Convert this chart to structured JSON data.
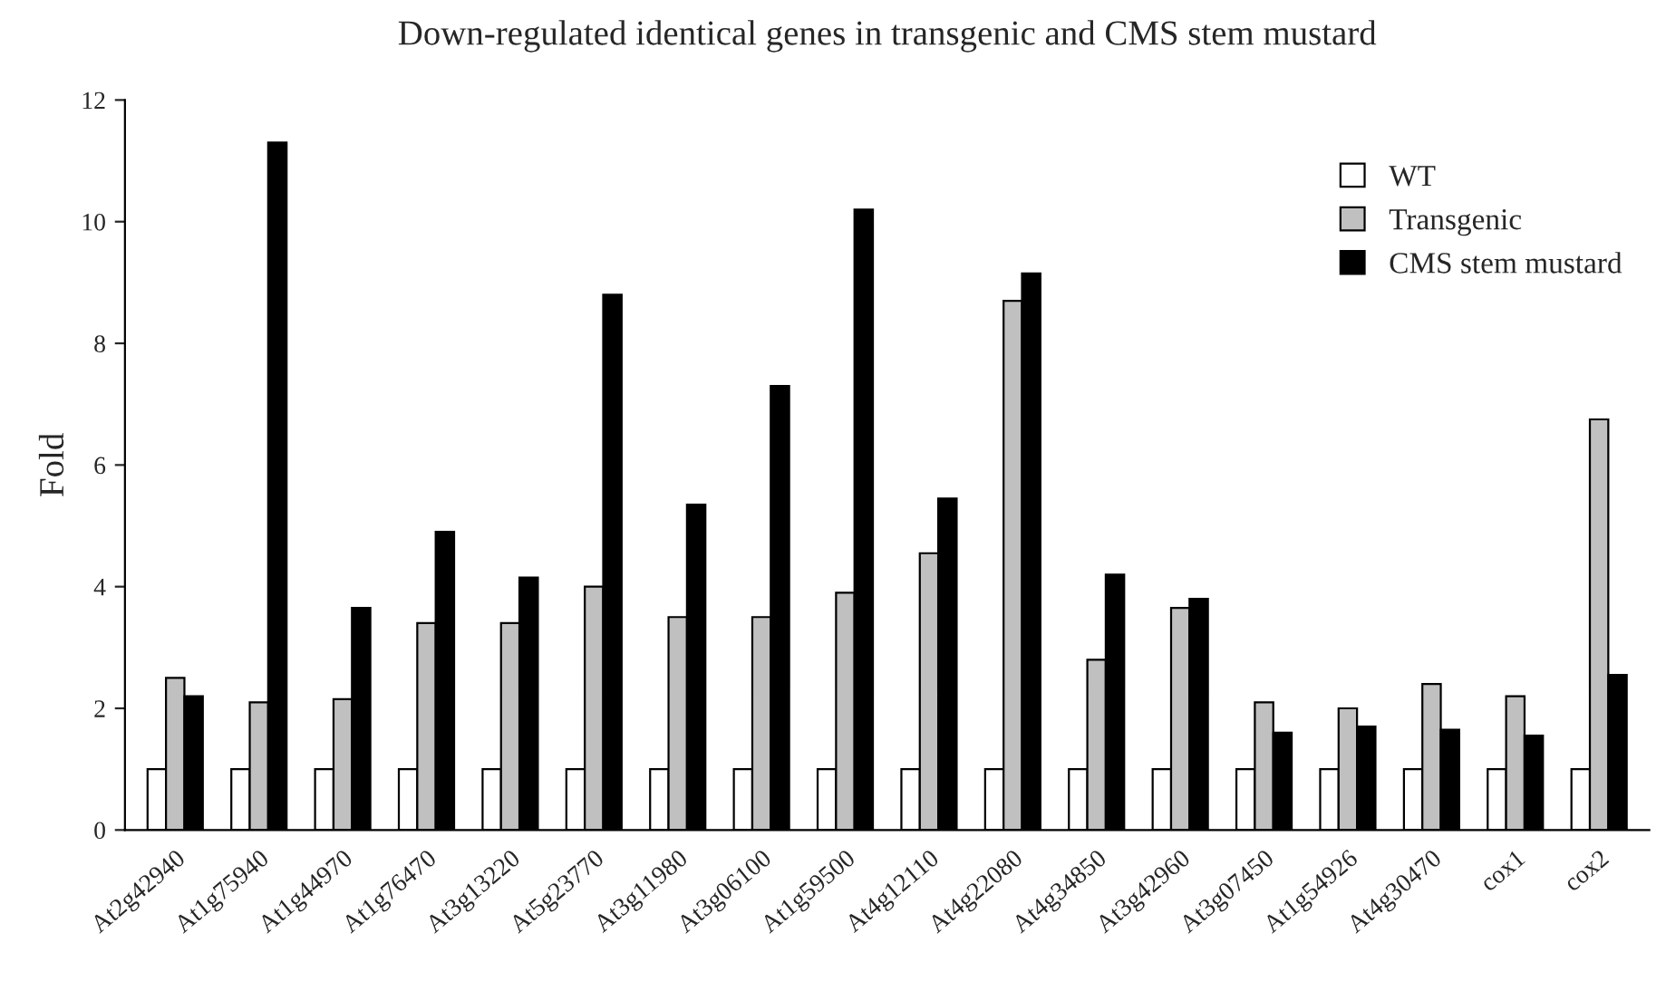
{
  "chart_data": {
    "type": "bar",
    "title": "Down-regulated identical genes in transgenic and CMS stem mustard",
    "ylabel": "Fold",
    "categories": [
      "At2g42940",
      "At1g75940",
      "At1g44970",
      "At1g76470",
      "At3g13220",
      "At5g23770",
      "At3g11980",
      "At3g06100",
      "At1g59500",
      "At4g12110",
      "At4g22080",
      "At4g34850",
      "At3g42960",
      "At3g07450",
      "At1g54926",
      "At4g30470",
      "cox1",
      "cox2"
    ],
    "series": [
      {
        "name": "WT",
        "color": "#ffffff",
        "values": [
          1,
          1,
          1,
          1,
          1,
          1,
          1,
          1,
          1,
          1,
          1,
          1,
          1,
          1,
          1,
          1,
          1,
          1
        ]
      },
      {
        "name": "Transgenic",
        "color": "#c0c0c0",
        "values": [
          2.5,
          2.1,
          2.15,
          3.4,
          3.4,
          4.0,
          3.5,
          3.5,
          3.9,
          4.55,
          8.7,
          2.8,
          3.65,
          2.1,
          2.0,
          2.4,
          2.2,
          6.75
        ]
      },
      {
        "name": "CMS stem mustard",
        "color": "#000000",
        "values": [
          2.2,
          11.3,
          3.65,
          4.9,
          4.15,
          8.8,
          5.35,
          7.3,
          10.2,
          5.45,
          9.15,
          4.2,
          3.8,
          1.6,
          1.7,
          1.65,
          1.55,
          2.55
        ]
      }
    ],
    "ylim": [
      0,
      12
    ],
    "yticks": [
      0,
      2,
      4,
      6,
      8,
      10,
      12
    ],
    "grid": false,
    "legend": "top right"
  }
}
